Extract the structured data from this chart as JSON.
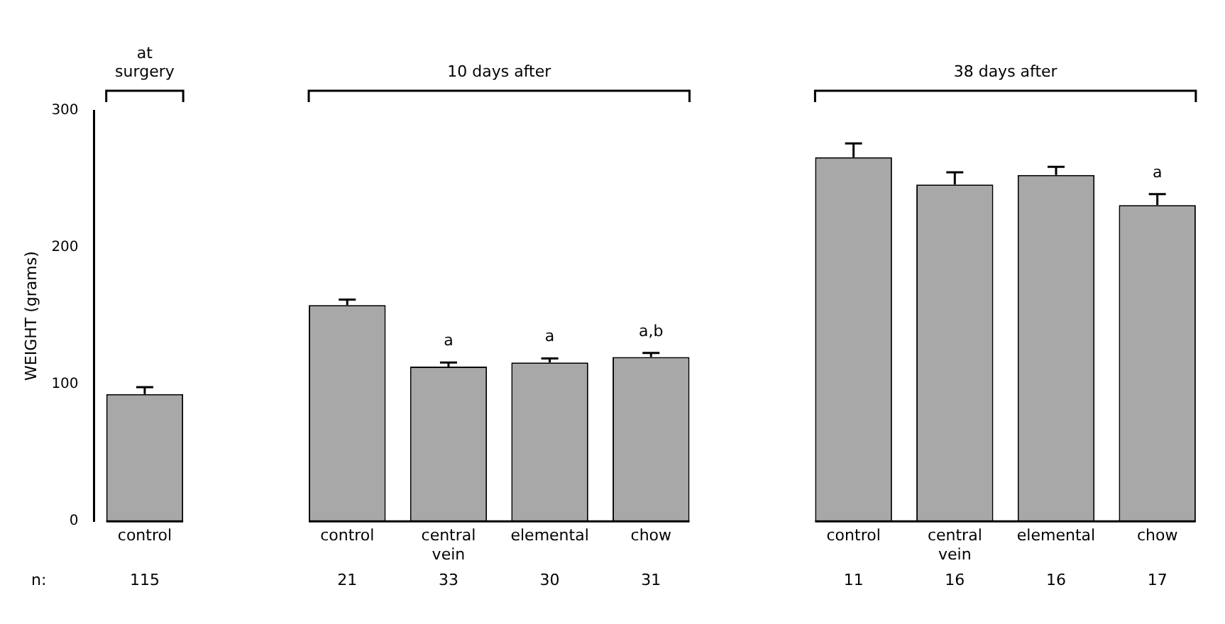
{
  "chart_data": {
    "type": "bar",
    "ylabel": "WEIGHT (grams)",
    "categories": [
      "control",
      null,
      "control",
      "central vein",
      "elemental",
      "chow",
      null,
      "control",
      "central vein",
      "elemental",
      "chow"
    ],
    "values": [
      93,
      null,
      158,
      113,
      116,
      120,
      null,
      266,
      246,
      253,
      231
    ],
    "errors": [
      [
        93,
        98
      ],
      null,
      [
        158,
        162
      ],
      [
        113,
        116
      ],
      [
        116,
        119
      ],
      [
        120,
        123
      ],
      null,
      [
        266,
        276
      ],
      [
        246,
        255
      ],
      [
        253,
        259
      ],
      [
        231,
        239
      ]
    ],
    "color": "#a8a8a8",
    "ylim": [
      0,
      300
    ],
    "yticks": [
      0,
      100,
      200,
      300
    ],
    "grid": false,
    "legend": false,
    "annotations": [
      "at surgery",
      "10 days after",
      "38 days after",
      "n:",
      "115",
      "21",
      "33",
      "30",
      "31",
      "11",
      "16",
      "16",
      "17",
      "a",
      "a",
      "a,b",
      "a"
    ]
  }
}
